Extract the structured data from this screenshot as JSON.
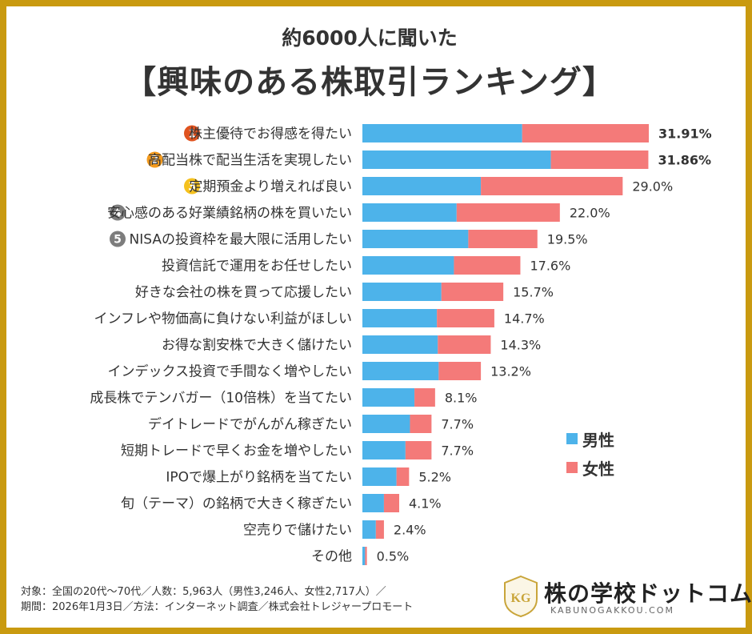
{
  "subtitle": "約6000人に聞いた",
  "title": "【興味のある株取引ランキング】",
  "colors": {
    "male": "#4db3ea",
    "female": "#f47a79",
    "border": "#c99a10",
    "rank1": "#e0531f",
    "rank2": "#f39a1d",
    "rank3": "#f5c11e",
    "rank45": "#7d7d7d"
  },
  "legend": {
    "male": "男性",
    "female": "女性"
  },
  "chart_data": {
    "type": "bar",
    "orientation": "horizontal",
    "stacked": true,
    "categories": [
      "株主優待でお得感を得たい",
      "高配当株で配当生活を実現したい",
      "定期預金より増えれば良い",
      "安心感のある好業績銘柄の株を買いたい",
      "NISAの投資枠を最大限に活用したい",
      "投資信託で運用をお任せしたい",
      "好きな会社の株を買って応援したい",
      "インフレや物価高に負けない利益がほしい",
      "お得な割安株で大きく儲けたい",
      "インデックス投資で手間なく増やしたい",
      "成長株でテンバガー（10倍株）を当てたい",
      "デイトレードでがんがん稼ぎたい",
      "短期トレードで早くお金を増やしたい",
      "IPOで爆上がり銘柄を当てたい",
      "旬（テーマ）の銘柄で大きく稼ぎたい",
      "空売りで儲けたい",
      "その他"
    ],
    "ranks": [
      "1",
      "2",
      "3",
      "4",
      "5",
      "",
      "",
      "",
      "",
      "",
      "",
      "",
      "",
      "",
      "",
      "",
      ""
    ],
    "totals": [
      31.91,
      31.86,
      29.0,
      22.0,
      19.5,
      17.6,
      15.7,
      14.7,
      14.3,
      13.2,
      8.1,
      7.7,
      7.7,
      5.2,
      4.1,
      2.4,
      0.5
    ],
    "value_labels": [
      "31.91%",
      "31.86%",
      "29.0%",
      "22.0%",
      "19.5%",
      "17.6%",
      "15.7%",
      "14.7%",
      "14.3%",
      "13.2%",
      "8.1%",
      "7.7%",
      "7.7%",
      "5.2%",
      "4.1%",
      "2.4%",
      "0.5%"
    ],
    "series": [
      {
        "name": "男性",
        "values": [
          17.8,
          21.0,
          13.2,
          10.5,
          11.8,
          10.2,
          8.8,
          8.3,
          8.4,
          8.5,
          5.8,
          5.3,
          4.8,
          3.8,
          2.4,
          1.5,
          0.3
        ]
      },
      {
        "name": "女性",
        "values": [
          14.11,
          10.86,
          15.8,
          11.5,
          7.7,
          7.4,
          6.9,
          6.4,
          5.9,
          4.7,
          2.3,
          2.4,
          2.9,
          1.4,
          1.7,
          0.9,
          0.2
        ]
      }
    ],
    "xlim": [
      0,
      32
    ]
  },
  "footer": {
    "line1": "対象：全国の20代〜70代／人数：5,963人（男性3,246人、女性2,717人）／",
    "line2": "期間：2026年1月3日／方法：インターネット調査／株式会社トレジャープロモート"
  },
  "logo": {
    "name": "株の学校ドットコム",
    "domain": "KABUNOGAKKOU.COM",
    "emblem": "KG"
  }
}
